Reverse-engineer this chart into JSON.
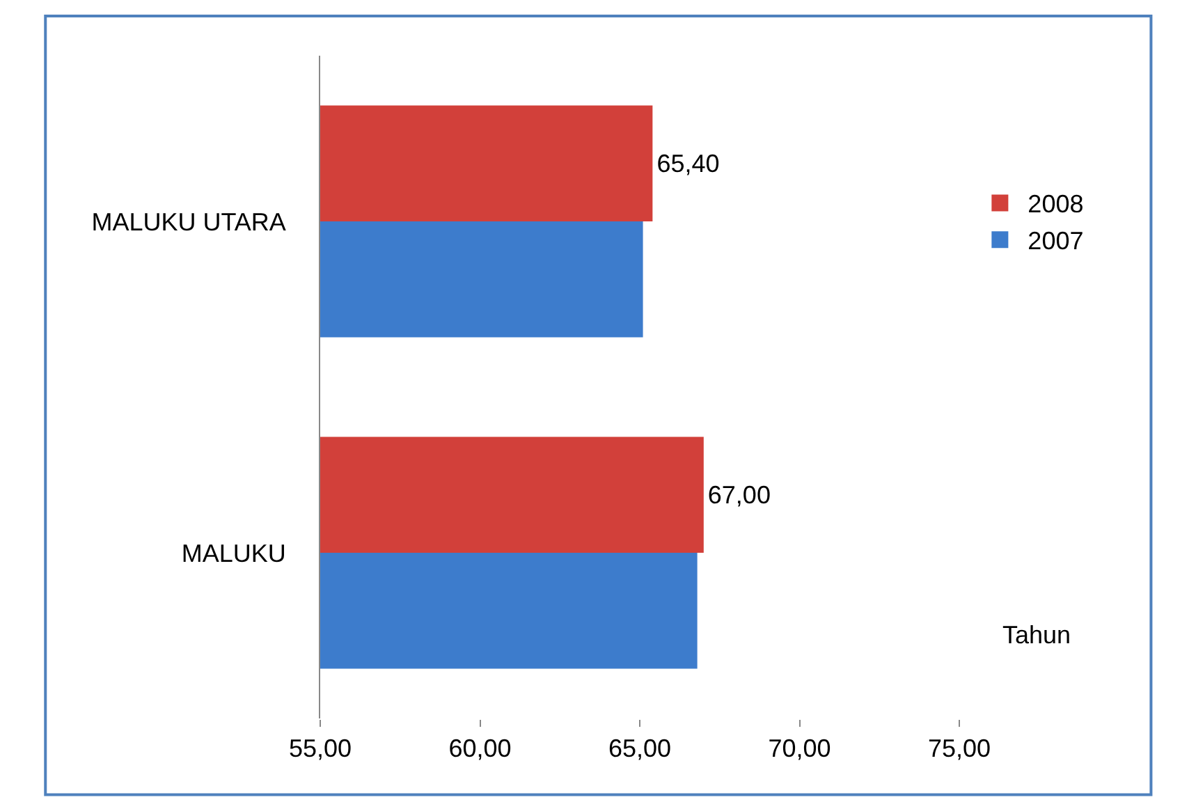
{
  "chart_data": {
    "type": "bar",
    "orientation": "horizontal",
    "categories": [
      "MALUKU UTARA",
      "MALUKU"
    ],
    "series": [
      {
        "name": "2008",
        "color": "#d2403a",
        "values": [
          65.4,
          67.0
        ],
        "value_labels": [
          "65,40",
          "67,00"
        ]
      },
      {
        "name": "2007",
        "color": "#3d7ccc",
        "values": [
          65.1,
          66.8
        ],
        "value_labels": [
          null,
          null
        ]
      }
    ],
    "xlim": [
      55,
      75
    ],
    "xticks": [
      {
        "value": 55,
        "label": "55,00"
      },
      {
        "value": 60,
        "label": "60,00"
      },
      {
        "value": 65,
        "label": "65,00"
      },
      {
        "value": 70,
        "label": "70,00"
      },
      {
        "value": 75,
        "label": "75,00"
      }
    ],
    "annotations": [
      "Tahun"
    ],
    "legend": "right"
  }
}
